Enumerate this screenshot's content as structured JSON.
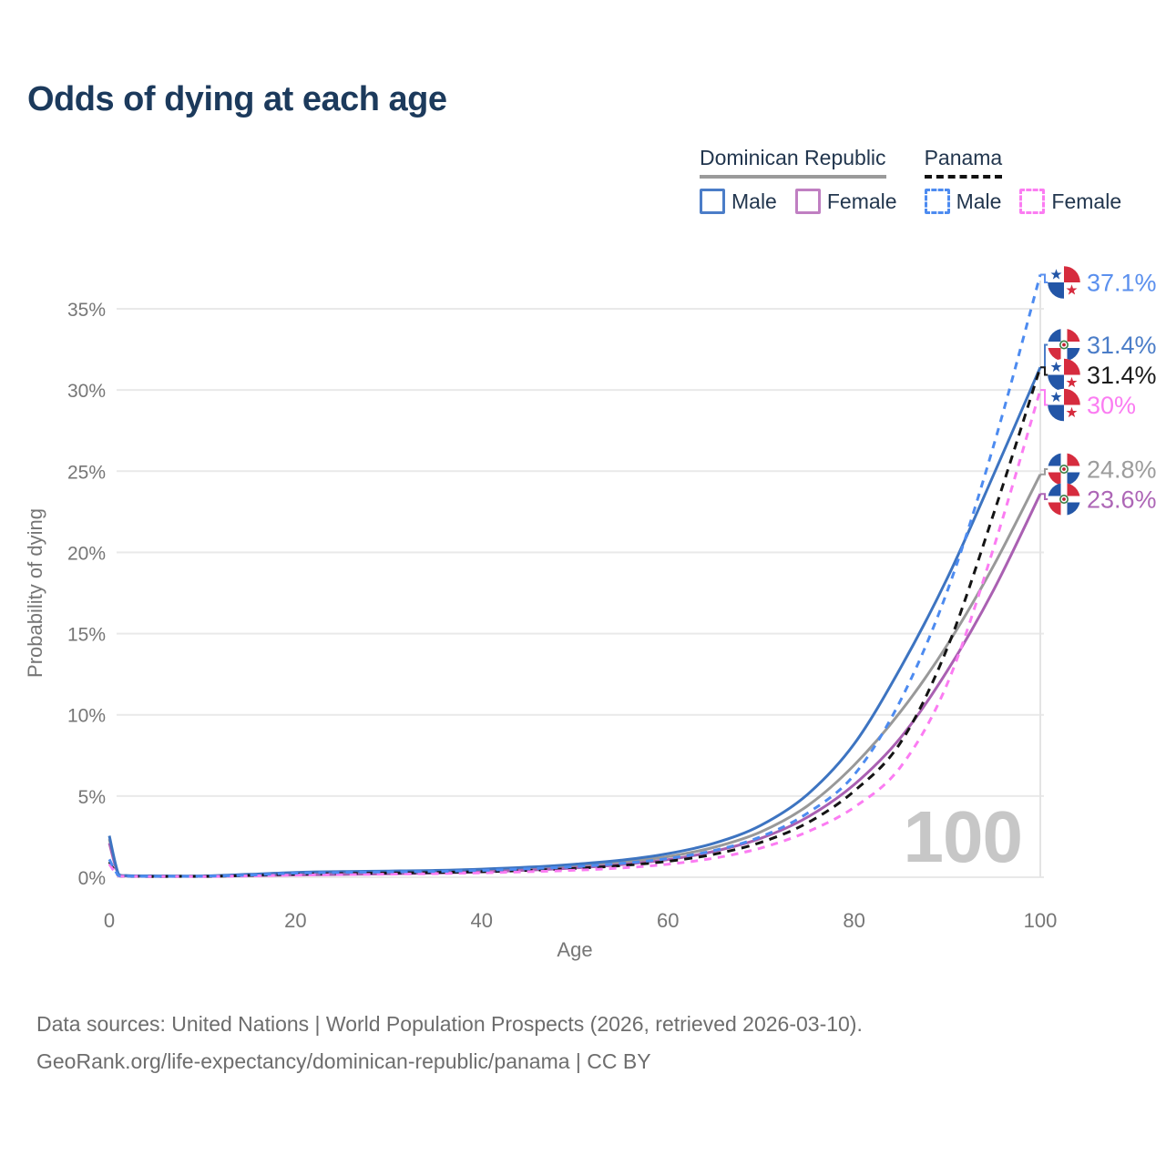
{
  "title": "Odds of dying at each age",
  "legend": {
    "dominican_republic": {
      "label": "Dominican Republic",
      "male": "Male",
      "female": "Female"
    },
    "panama": {
      "label": "Panama",
      "male": "Male",
      "female": "Female"
    }
  },
  "watermark": "100",
  "footer": {
    "line1": "Data sources: United Nations | World Population Prospects (2026, retrieved 2026-03-10).",
    "line2": "GeoRank.org/life-expectancy/dominican-republic/panama | CC BY"
  },
  "colors": {
    "title_text": "#1c3a5c",
    "axis_text": "#767676",
    "gridline": "#e9e9e9",
    "hover_line": "#e4e4e4",
    "watermark": "#c7c7c7",
    "dr_male": "#3d74c1",
    "dr_female": "#aa60b2",
    "dr_total": "#999999",
    "pa_male": "#4d8bf0",
    "pa_female": "#fb7cf2",
    "pa_total": "#141414",
    "flag_blue": "#2356a7",
    "flag_red": "#d62c3e"
  },
  "chart_data": {
    "type": "line",
    "title": "Odds of dying at each age",
    "xlabel": "Age",
    "ylabel": "Probability of dying",
    "xlim": [
      0,
      100
    ],
    "ylim_percent": [
      0,
      37.5
    ],
    "x_ticks": [
      "0",
      "20",
      "40",
      "60",
      "80",
      "100"
    ],
    "y_ticks": [
      "0%",
      "5%",
      "10%",
      "15%",
      "20%",
      "25%",
      "30%",
      "35%"
    ],
    "grid": "horizontal",
    "legend_position": "top-right",
    "hover_age": "100",
    "series": [
      {
        "id": "dr_total",
        "name": "Dominican Republic Both sexes",
        "country": "Dominican Republic",
        "sex": "Both",
        "style": "solid",
        "color": "#999999",
        "dash": "",
        "end_label": {
          "text": "24.8%",
          "value": 24.8,
          "flag": "dominican-republic",
          "color": "#9c9c9c"
        },
        "points": [
          [
            0,
            2.35
          ],
          [
            1,
            0.16
          ],
          [
            2,
            0.09
          ],
          [
            5,
            0.07
          ],
          [
            10,
            0.07
          ],
          [
            15,
            0.14
          ],
          [
            20,
            0.22
          ],
          [
            25,
            0.26
          ],
          [
            30,
            0.3
          ],
          [
            35,
            0.34
          ],
          [
            40,
            0.41
          ],
          [
            45,
            0.52
          ],
          [
            50,
            0.68
          ],
          [
            55,
            0.92
          ],
          [
            60,
            1.27
          ],
          [
            65,
            1.85
          ],
          [
            70,
            2.8
          ],
          [
            75,
            4.4
          ],
          [
            80,
            6.9
          ],
          [
            85,
            10.2
          ],
          [
            90,
            14.3
          ],
          [
            95,
            19.2
          ],
          [
            100,
            24.8
          ]
        ]
      },
      {
        "id": "dr_female",
        "name": "Dominican Republic Female",
        "country": "Dominican Republic",
        "sex": "Female",
        "style": "solid",
        "color": "#aa60b2",
        "dash": "",
        "end_label": {
          "text": "23.6%",
          "value": 23.6,
          "flag": "dominican-republic",
          "color": "#ad66b6"
        },
        "points": [
          [
            0,
            2.1
          ],
          [
            1,
            0.14
          ],
          [
            2,
            0.08
          ],
          [
            5,
            0.06
          ],
          [
            10,
            0.06
          ],
          [
            15,
            0.1
          ],
          [
            20,
            0.14
          ],
          [
            25,
            0.17
          ],
          [
            30,
            0.21
          ],
          [
            35,
            0.26
          ],
          [
            40,
            0.33
          ],
          [
            45,
            0.43
          ],
          [
            50,
            0.57
          ],
          [
            55,
            0.78
          ],
          [
            60,
            1.08
          ],
          [
            65,
            1.6
          ],
          [
            70,
            2.4
          ],
          [
            75,
            3.7
          ],
          [
            80,
            5.7
          ],
          [
            85,
            8.6
          ],
          [
            90,
            12.7
          ],
          [
            95,
            17.7
          ],
          [
            100,
            23.6
          ]
        ]
      },
      {
        "id": "dr_male",
        "name": "Dominican Republic Male",
        "country": "Dominican Republic",
        "sex": "Male",
        "style": "solid",
        "color": "#3d74c1",
        "dash": "",
        "end_label": {
          "text": "31.4%",
          "value": 31.4,
          "flag": "dominican-republic",
          "color": "#4b7dc8"
        },
        "points": [
          [
            0,
            2.55
          ],
          [
            1,
            0.18
          ],
          [
            2,
            0.1
          ],
          [
            5,
            0.08
          ],
          [
            10,
            0.08
          ],
          [
            15,
            0.18
          ],
          [
            20,
            0.3
          ],
          [
            25,
            0.35
          ],
          [
            30,
            0.38
          ],
          [
            35,
            0.42
          ],
          [
            40,
            0.5
          ],
          [
            45,
            0.62
          ],
          [
            50,
            0.8
          ],
          [
            55,
            1.05
          ],
          [
            60,
            1.45
          ],
          [
            65,
            2.1
          ],
          [
            70,
            3.2
          ],
          [
            75,
            5.1
          ],
          [
            80,
            8.2
          ],
          [
            85,
            12.9
          ],
          [
            90,
            18.4
          ],
          [
            95,
            24.8
          ],
          [
            100,
            31.4
          ]
        ]
      },
      {
        "id": "pa_total",
        "name": "Panama Both sexes",
        "country": "Panama",
        "sex": "Both",
        "style": "dashed",
        "color": "#141414",
        "dash": "9 7",
        "end_label": {
          "text": "31.4%",
          "value": 31.4,
          "flag": "panama",
          "color": "#1c1c1c"
        },
        "points": [
          [
            0,
            0.95
          ],
          [
            1,
            0.09
          ],
          [
            2,
            0.05
          ],
          [
            5,
            0.04
          ],
          [
            10,
            0.05
          ],
          [
            15,
            0.11
          ],
          [
            20,
            0.19
          ],
          [
            25,
            0.23
          ],
          [
            30,
            0.26
          ],
          [
            35,
            0.29
          ],
          [
            40,
            0.34
          ],
          [
            45,
            0.42
          ],
          [
            50,
            0.54
          ],
          [
            55,
            0.72
          ],
          [
            60,
            0.98
          ],
          [
            65,
            1.42
          ],
          [
            70,
            2.15
          ],
          [
            75,
            3.35
          ],
          [
            80,
            5.3
          ],
          [
            85,
            8.3
          ],
          [
            90,
            14.1
          ],
          [
            95,
            22.4
          ],
          [
            100,
            31.4
          ]
        ]
      },
      {
        "id": "pa_female",
        "name": "Panama Female",
        "country": "Panama",
        "sex": "Female",
        "style": "dashed",
        "color": "#fb7cf2",
        "dash": "8 7",
        "end_label": {
          "text": "30%",
          "value": 30,
          "flag": "panama",
          "color": "#fb7cf2"
        },
        "points": [
          [
            0,
            0.8
          ],
          [
            1,
            0.08
          ],
          [
            2,
            0.05
          ],
          [
            5,
            0.04
          ],
          [
            10,
            0.04
          ],
          [
            15,
            0.08
          ],
          [
            20,
            0.13
          ],
          [
            25,
            0.16
          ],
          [
            30,
            0.19
          ],
          [
            35,
            0.22
          ],
          [
            40,
            0.27
          ],
          [
            45,
            0.34
          ],
          [
            50,
            0.43
          ],
          [
            55,
            0.57
          ],
          [
            60,
            0.8
          ],
          [
            65,
            1.18
          ],
          [
            70,
            1.8
          ],
          [
            75,
            2.8
          ],
          [
            80,
            4.3
          ],
          [
            85,
            6.8
          ],
          [
            90,
            11.9
          ],
          [
            95,
            20.3
          ],
          [
            100,
            30.0
          ]
        ]
      },
      {
        "id": "pa_male",
        "name": "Panama Male",
        "country": "Panama",
        "sex": "Male",
        "style": "dashed",
        "color": "#4d8bf0",
        "dash": "8 7",
        "end_label": {
          "text": "37.1%",
          "value": 37.1,
          "flag": "panama",
          "color": "#5b90ee"
        },
        "points": [
          [
            0,
            1.1
          ],
          [
            1,
            0.1
          ],
          [
            2,
            0.06
          ],
          [
            5,
            0.05
          ],
          [
            10,
            0.06
          ],
          [
            15,
            0.13
          ],
          [
            20,
            0.25
          ],
          [
            25,
            0.3
          ],
          [
            30,
            0.33
          ],
          [
            35,
            0.36
          ],
          [
            40,
            0.42
          ],
          [
            45,
            0.52
          ],
          [
            50,
            0.65
          ],
          [
            55,
            0.85
          ],
          [
            60,
            1.15
          ],
          [
            65,
            1.65
          ],
          [
            70,
            2.5
          ],
          [
            75,
            3.95
          ],
          [
            80,
            6.3
          ],
          [
            85,
            10.9
          ],
          [
            90,
            17.6
          ],
          [
            95,
            26.6
          ],
          [
            100,
            37.1
          ]
        ]
      }
    ]
  }
}
